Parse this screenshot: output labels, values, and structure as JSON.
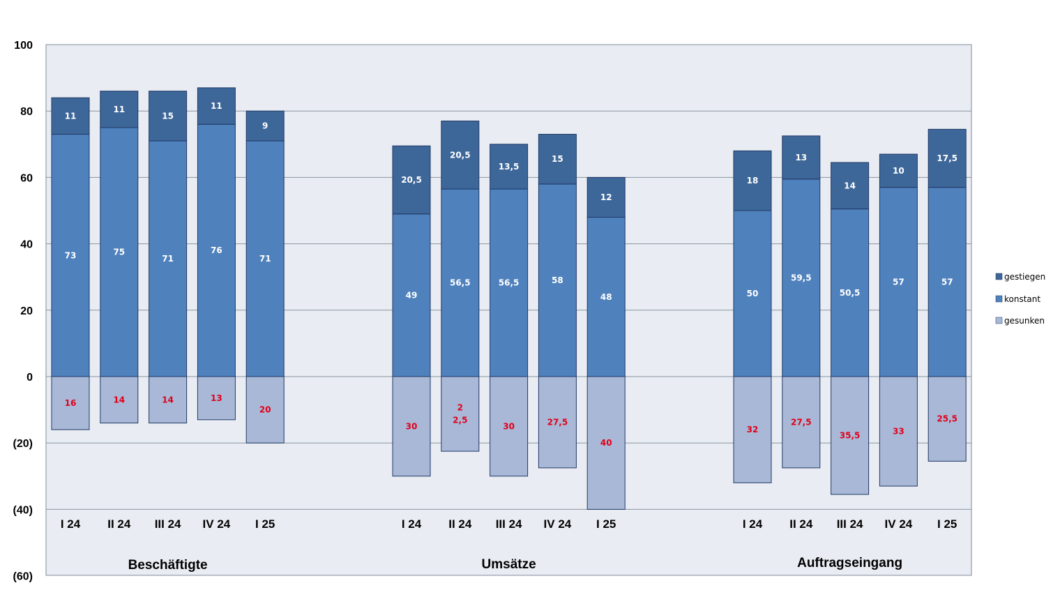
{
  "chart_data": {
    "type": "bar",
    "stacked": true,
    "ylim": [
      -60,
      100
    ],
    "yticks": [
      100,
      80,
      60,
      40,
      20,
      0,
      -20,
      -40,
      -60
    ],
    "ytick_labels": [
      "100",
      "80",
      "60",
      "40",
      "20",
      "0",
      "(20)",
      "(40)",
      "(60)"
    ],
    "grid": true,
    "legend_position": "right",
    "groups": [
      {
        "label": "Beschäftigte",
        "categories": [
          "I 24",
          "II 24",
          "III 24",
          "IV 24",
          "I 25"
        ],
        "konstant": [
          73,
          75,
          71,
          76,
          71
        ],
        "gestiegen": [
          11,
          11,
          15,
          11,
          9
        ],
        "gesunken": [
          16,
          14,
          14,
          13,
          20
        ],
        "konstant_labels": [
          "73",
          "75",
          "71",
          "76",
          "71"
        ],
        "gestiegen_labels": [
          "11",
          "11",
          "15",
          "11",
          "9"
        ],
        "gesunken_labels": [
          "16",
          "14",
          "14",
          "13",
          "20"
        ]
      },
      {
        "label": "Umsätze",
        "categories": [
          "I 24",
          "II 24",
          "III 24",
          "IV 24",
          "I 25"
        ],
        "konstant": [
          49,
          56.5,
          56.5,
          58,
          48
        ],
        "gestiegen": [
          20.5,
          20.5,
          13.5,
          15,
          12
        ],
        "gesunken": [
          30,
          22.5,
          30,
          27.5,
          40
        ],
        "konstant_labels": [
          "49",
          "56,5",
          "56,5",
          "58",
          "48"
        ],
        "gestiegen_labels": [
          "20,5",
          "20,5",
          "13,5",
          "15",
          "12"
        ],
        "gesunken_labels": [
          "30",
          "2\n2,5",
          "30",
          "27,5",
          "40"
        ]
      },
      {
        "label": "Auftragseingang",
        "categories": [
          "I 24",
          "II 24",
          "III 24",
          "IV 24",
          "I 25"
        ],
        "konstant": [
          50,
          59.5,
          50.5,
          57,
          57
        ],
        "gestiegen": [
          18,
          13,
          14,
          10,
          17.5
        ],
        "gesunken": [
          32,
          27.5,
          35.5,
          33,
          25.5
        ],
        "konstant_labels": [
          "50",
          "59,5",
          "50,5",
          "57",
          "57"
        ],
        "gestiegen_labels": [
          "18",
          "13",
          "14",
          "10",
          "17,5"
        ],
        "gesunken_labels": [
          "32",
          "27,5",
          "35,5",
          "33",
          "25,5"
        ]
      }
    ],
    "series": [
      {
        "name": "gestiegen",
        "color": "#3e6799"
      },
      {
        "name": "konstant",
        "color": "#4f81bd"
      },
      {
        "name": "gesunken",
        "color": "#a9b8d6"
      }
    ],
    "label_colors": {
      "up": "#ffffff",
      "down": "#e0001b"
    }
  }
}
